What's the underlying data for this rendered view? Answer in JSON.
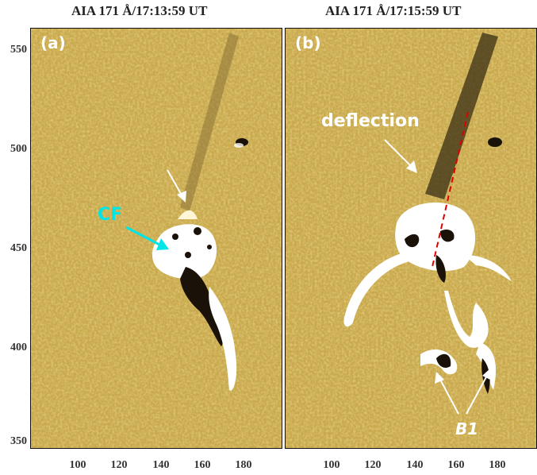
{
  "titles": {
    "left": "AIA 171 Å/17:13:59 UT",
    "right": "AIA 171 Å/17:15:59 UT"
  },
  "panels": {
    "a": {
      "label": "(a)",
      "annotation": "CF",
      "annotation_color": "#00e5e5"
    },
    "b": {
      "label": "(b)",
      "annotation_top": "deflection",
      "annotation_bottom": "B1"
    }
  },
  "axes": {
    "y_ticks": [
      "550",
      "500",
      "450",
      "400",
      "350"
    ],
    "x_ticks_left": [
      "100",
      "120",
      "140",
      "160",
      "180"
    ],
    "x_ticks_right": [
      "100",
      "120",
      "140",
      "160",
      "180"
    ]
  },
  "colors": {
    "background": "#c9a84a",
    "dark": "#1a1208",
    "bright": "#ffffff",
    "cf_arrow": "#00e5e5",
    "dashed_line": "#e00000"
  }
}
